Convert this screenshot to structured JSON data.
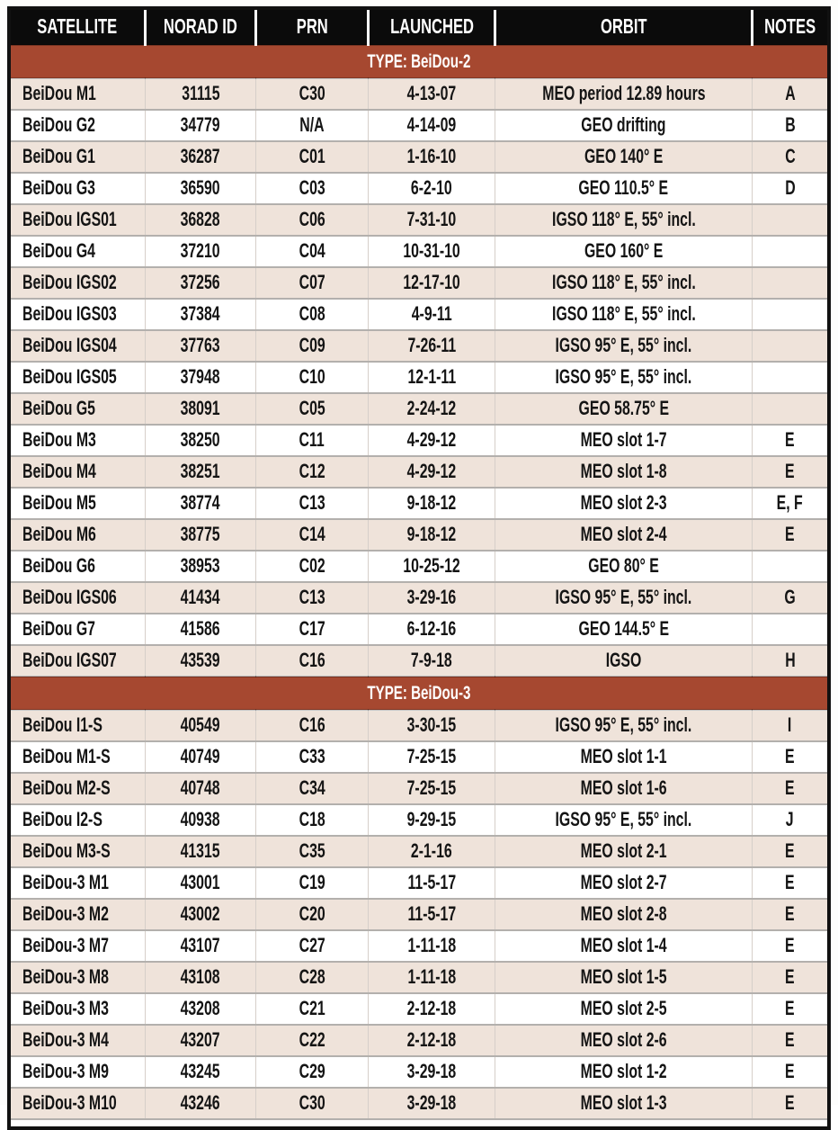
{
  "colors": {
    "header_bg": "#0b0b0b",
    "header_fg": "#ffffff",
    "section_header_bg": "#a64830",
    "section_header_fg": "#ffffff",
    "row_alt_bg": "#efe3da",
    "row_bg": "#ffffff",
    "text": "#141414"
  },
  "table": {
    "columns": [
      {
        "key": "satellite",
        "label": "SATELLITE"
      },
      {
        "key": "norad_id",
        "label": "NORAD ID"
      },
      {
        "key": "prn",
        "label": "PRN"
      },
      {
        "key": "launched",
        "label": "LAUNCHED"
      },
      {
        "key": "orbit",
        "label": "ORBIT"
      },
      {
        "key": "notes",
        "label": "NOTES"
      }
    ],
    "sections": [
      {
        "title": "TYPE: BeiDou-2",
        "rows": [
          {
            "satellite": "BeiDou M1",
            "norad_id": "31115",
            "prn": "C30",
            "launched": "4-13-07",
            "orbit": "MEO period 12.89 hours",
            "notes": "A"
          },
          {
            "satellite": "BeiDou G2",
            "norad_id": "34779",
            "prn": "N/A",
            "launched": "4-14-09",
            "orbit": "GEO drifting",
            "notes": "B"
          },
          {
            "satellite": "BeiDou G1",
            "norad_id": "36287",
            "prn": "C01",
            "launched": "1-16-10",
            "orbit": "GEO 140° E",
            "notes": "C"
          },
          {
            "satellite": "BeiDou G3",
            "norad_id": "36590",
            "prn": "C03",
            "launched": "6-2-10",
            "orbit": "GEO 110.5° E",
            "notes": "D"
          },
          {
            "satellite": "BeiDou IGS01",
            "norad_id": "36828",
            "prn": "C06",
            "launched": "7-31-10",
            "orbit": "IGSO 118° E, 55° incl.",
            "notes": ""
          },
          {
            "satellite": "BeiDou G4",
            "norad_id": "37210",
            "prn": "C04",
            "launched": "10-31-10",
            "orbit": "GEO 160° E",
            "notes": ""
          },
          {
            "satellite": "BeiDou IGS02",
            "norad_id": "37256",
            "prn": "C07",
            "launched": "12-17-10",
            "orbit": "IGSO 118° E, 55° incl.",
            "notes": ""
          },
          {
            "satellite": "BeiDou IGS03",
            "norad_id": "37384",
            "prn": "C08",
            "launched": "4-9-11",
            "orbit": "IGSO 118° E, 55° incl.",
            "notes": ""
          },
          {
            "satellite": "BeiDou IGS04",
            "norad_id": "37763",
            "prn": "C09",
            "launched": "7-26-11",
            "orbit": "IGSO 95° E, 55° incl.",
            "notes": ""
          },
          {
            "satellite": "BeiDou IGS05",
            "norad_id": "37948",
            "prn": "C10",
            "launched": "12-1-11",
            "orbit": "IGSO 95° E, 55° incl.",
            "notes": ""
          },
          {
            "satellite": "BeiDou G5",
            "norad_id": "38091",
            "prn": "C05",
            "launched": "2-24-12",
            "orbit": "GEO 58.75° E",
            "notes": ""
          },
          {
            "satellite": "BeiDou M3",
            "norad_id": "38250",
            "prn": "C11",
            "launched": "4-29-12",
            "orbit": "MEO slot 1-7",
            "notes": "E"
          },
          {
            "satellite": "BeiDou M4",
            "norad_id": "38251",
            "prn": "C12",
            "launched": "4-29-12",
            "orbit": "MEO slot 1-8",
            "notes": "E"
          },
          {
            "satellite": "BeiDou M5",
            "norad_id": "38774",
            "prn": "C13",
            "launched": "9-18-12",
            "orbit": "MEO slot 2-3",
            "notes": "E, F"
          },
          {
            "satellite": "BeiDou M6",
            "norad_id": "38775",
            "prn": "C14",
            "launched": "9-18-12",
            "orbit": "MEO slot 2-4",
            "notes": "E"
          },
          {
            "satellite": "BeiDou G6",
            "norad_id": "38953",
            "prn": "C02",
            "launched": "10-25-12",
            "orbit": "GEO 80° E",
            "notes": ""
          },
          {
            "satellite": "BeiDou IGS06",
            "norad_id": "41434",
            "prn": "C13",
            "launched": "3-29-16",
            "orbit": "IGSO 95° E, 55° incl.",
            "notes": "G"
          },
          {
            "satellite": "BeiDou G7",
            "norad_id": "41586",
            "prn": "C17",
            "launched": "6-12-16",
            "orbit": "GEO 144.5° E",
            "notes": ""
          },
          {
            "satellite": "BeiDou IGS07",
            "norad_id": "43539",
            "prn": "C16",
            "launched": "7-9-18",
            "orbit": "IGSO",
            "notes": "H"
          }
        ]
      },
      {
        "title": "TYPE: BeiDou-3",
        "rows": [
          {
            "satellite": "BeiDou I1-S",
            "norad_id": "40549",
            "prn": "C16",
            "launched": "3-30-15",
            "orbit": "IGSO 95° E, 55° incl.",
            "notes": "I"
          },
          {
            "satellite": "BeiDou M1-S",
            "norad_id": "40749",
            "prn": "C33",
            "launched": "7-25-15",
            "orbit": "MEO slot 1-1",
            "notes": "E"
          },
          {
            "satellite": "BeiDou M2-S",
            "norad_id": "40748",
            "prn": "C34",
            "launched": "7-25-15",
            "orbit": "MEO slot 1-6",
            "notes": "E"
          },
          {
            "satellite": "BeiDou I2-S",
            "norad_id": "40938",
            "prn": "C18",
            "launched": "9-29-15",
            "orbit": "IGSO 95° E, 55° incl.",
            "notes": "J"
          },
          {
            "satellite": "BeiDou M3-S",
            "norad_id": "41315",
            "prn": "C35",
            "launched": "2-1-16",
            "orbit": "MEO slot 2-1",
            "notes": "E"
          },
          {
            "satellite": "BeiDou-3 M1",
            "norad_id": "43001",
            "prn": "C19",
            "launched": "11-5-17",
            "orbit": "MEO slot 2-7",
            "notes": "E"
          },
          {
            "satellite": "BeiDou-3 M2",
            "norad_id": "43002",
            "prn": "C20",
            "launched": "11-5-17",
            "orbit": "MEO slot 2-8",
            "notes": "E"
          },
          {
            "satellite": "BeiDou-3 M7",
            "norad_id": "43107",
            "prn": "C27",
            "launched": "1-11-18",
            "orbit": "MEO slot 1-4",
            "notes": "E"
          },
          {
            "satellite": "BeiDou-3 M8",
            "norad_id": "43108",
            "prn": "C28",
            "launched": "1-11-18",
            "orbit": "MEO slot 1-5",
            "notes": "E"
          },
          {
            "satellite": "BeiDou-3 M3",
            "norad_id": "43208",
            "prn": "C21",
            "launched": "2-12-18",
            "orbit": "MEO slot 2-5",
            "notes": "E"
          },
          {
            "satellite": "BeiDou-3 M4",
            "norad_id": "43207",
            "prn": "C22",
            "launched": "2-12-18",
            "orbit": "MEO slot 2-6",
            "notes": "E"
          },
          {
            "satellite": "BeiDou-3 M9",
            "norad_id": "43245",
            "prn": "C29",
            "launched": "3-29-18",
            "orbit": "MEO slot 1-2",
            "notes": "E"
          },
          {
            "satellite": "BeiDou-3 M10",
            "norad_id": "43246",
            "prn": "C30",
            "launched": "3-29-18",
            "orbit": "MEO slot 1-3",
            "notes": "E"
          }
        ]
      }
    ]
  }
}
